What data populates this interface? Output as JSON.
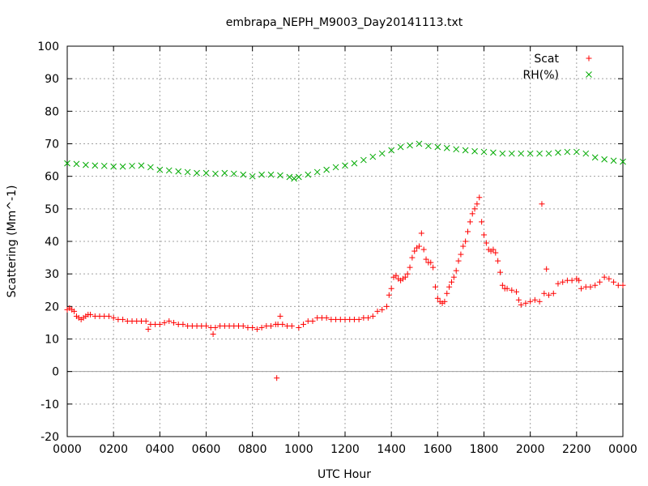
{
  "chart_data": {
    "type": "scatter",
    "title": "embrapa_NEPH_M9003_Day20141113.txt",
    "xlabel": "UTC Hour",
    "ylabel": "Scattering (Mm^-1)",
    "xlim": [
      0,
      24
    ],
    "ylim": [
      -20,
      100
    ],
    "grid": true,
    "legend_position": "top-right",
    "x_ticks": [
      {
        "x": 0,
        "label": "0000"
      },
      {
        "x": 2,
        "label": "0200"
      },
      {
        "x": 4,
        "label": "0400"
      },
      {
        "x": 6,
        "label": "0600"
      },
      {
        "x": 8,
        "label": "0800"
      },
      {
        "x": 10,
        "label": "1000"
      },
      {
        "x": 12,
        "label": "1200"
      },
      {
        "x": 14,
        "label": "1400"
      },
      {
        "x": 16,
        "label": "1600"
      },
      {
        "x": 18,
        "label": "1800"
      },
      {
        "x": 20,
        "label": "2000"
      },
      {
        "x": 22,
        "label": "2200"
      },
      {
        "x": 24,
        "label": "0000"
      }
    ],
    "y_ticks": [
      {
        "y": -20,
        "label": "-20"
      },
      {
        "y": -10,
        "label": "-10"
      },
      {
        "y": 0,
        "label": "0"
      },
      {
        "y": 10,
        "label": "10"
      },
      {
        "y": 20,
        "label": "20"
      },
      {
        "y": 30,
        "label": "30"
      },
      {
        "y": 40,
        "label": "40"
      },
      {
        "y": 50,
        "label": "50"
      },
      {
        "y": 60,
        "label": "60"
      },
      {
        "y": 70,
        "label": "70"
      },
      {
        "y": 80,
        "label": "80"
      },
      {
        "y": 90,
        "label": "90"
      },
      {
        "y": 100,
        "label": "100"
      }
    ],
    "series": [
      {
        "name": "Scat",
        "marker": "plus",
        "color": "#ff0000",
        "points": [
          [
            0.0,
            19.0
          ],
          [
            0.1,
            19.5
          ],
          [
            0.2,
            19.0
          ],
          [
            0.3,
            18.5
          ],
          [
            0.4,
            17.0
          ],
          [
            0.5,
            16.5
          ],
          [
            0.6,
            16.0
          ],
          [
            0.7,
            16.5
          ],
          [
            0.8,
            17.0
          ],
          [
            0.9,
            17.5
          ],
          [
            1.0,
            17.5
          ],
          [
            1.2,
            17.0
          ],
          [
            1.4,
            17.0
          ],
          [
            1.6,
            17.0
          ],
          [
            1.8,
            17.0
          ],
          [
            2.0,
            16.5
          ],
          [
            2.2,
            16.0
          ],
          [
            2.4,
            16.0
          ],
          [
            2.6,
            15.5
          ],
          [
            2.8,
            15.5
          ],
          [
            3.0,
            15.5
          ],
          [
            3.2,
            15.5
          ],
          [
            3.4,
            15.5
          ],
          [
            3.5,
            13.0
          ],
          [
            3.6,
            14.5
          ],
          [
            3.8,
            14.5
          ],
          [
            4.0,
            14.5
          ],
          [
            4.2,
            15.0
          ],
          [
            4.4,
            15.5
          ],
          [
            4.6,
            15.0
          ],
          [
            4.8,
            14.5
          ],
          [
            5.0,
            14.5
          ],
          [
            5.2,
            14.0
          ],
          [
            5.4,
            14.0
          ],
          [
            5.6,
            14.0
          ],
          [
            5.8,
            14.0
          ],
          [
            6.0,
            14.0
          ],
          [
            6.2,
            13.5
          ],
          [
            6.3,
            11.5
          ],
          [
            6.4,
            13.5
          ],
          [
            6.6,
            14.0
          ],
          [
            6.8,
            14.0
          ],
          [
            7.0,
            14.0
          ],
          [
            7.2,
            14.0
          ],
          [
            7.4,
            14.0
          ],
          [
            7.6,
            14.0
          ],
          [
            7.8,
            13.5
          ],
          [
            8.0,
            13.5
          ],
          [
            8.2,
            13.0
          ],
          [
            8.4,
            13.5
          ],
          [
            8.6,
            14.0
          ],
          [
            8.8,
            14.0
          ],
          [
            9.0,
            14.5
          ],
          [
            9.05,
            -2.0
          ],
          [
            9.1,
            14.5
          ],
          [
            9.2,
            17.0
          ],
          [
            9.3,
            14.5
          ],
          [
            9.5,
            14.0
          ],
          [
            9.7,
            14.0
          ],
          [
            10.0,
            13.5
          ],
          [
            10.2,
            14.5
          ],
          [
            10.4,
            15.5
          ],
          [
            10.6,
            15.5
          ],
          [
            10.8,
            16.5
          ],
          [
            11.0,
            16.5
          ],
          [
            11.2,
            16.5
          ],
          [
            11.4,
            16.0
          ],
          [
            11.6,
            16.0
          ],
          [
            11.8,
            16.0
          ],
          [
            12.0,
            16.0
          ],
          [
            12.2,
            16.0
          ],
          [
            12.4,
            16.0
          ],
          [
            12.6,
            16.0
          ],
          [
            12.8,
            16.5
          ],
          [
            13.0,
            16.5
          ],
          [
            13.2,
            17.0
          ],
          [
            13.4,
            18.5
          ],
          [
            13.6,
            19.0
          ],
          [
            13.8,
            20.0
          ],
          [
            13.9,
            23.5
          ],
          [
            14.0,
            25.5
          ],
          [
            14.1,
            29.0
          ],
          [
            14.2,
            29.5
          ],
          [
            14.3,
            28.5
          ],
          [
            14.4,
            28.0
          ],
          [
            14.5,
            28.5
          ],
          [
            14.6,
            29.0
          ],
          [
            14.7,
            30.0
          ],
          [
            14.8,
            32.0
          ],
          [
            14.9,
            35.0
          ],
          [
            15.0,
            37.0
          ],
          [
            15.1,
            38.0
          ],
          [
            15.2,
            38.5
          ],
          [
            15.3,
            42.5
          ],
          [
            15.4,
            37.5
          ],
          [
            15.5,
            34.5
          ],
          [
            15.6,
            33.5
          ],
          [
            15.7,
            33.5
          ],
          [
            15.8,
            32.0
          ],
          [
            15.9,
            26.0
          ],
          [
            16.0,
            22.5
          ],
          [
            16.1,
            21.5
          ],
          [
            16.2,
            21.0
          ],
          [
            16.3,
            21.5
          ],
          [
            16.4,
            24.0
          ],
          [
            16.5,
            26.0
          ],
          [
            16.6,
            27.5
          ],
          [
            16.7,
            29.0
          ],
          [
            16.8,
            31.0
          ],
          [
            16.9,
            34.0
          ],
          [
            17.0,
            36.0
          ],
          [
            17.1,
            38.5
          ],
          [
            17.2,
            40.0
          ],
          [
            17.3,
            43.0
          ],
          [
            17.4,
            46.0
          ],
          [
            17.5,
            48.5
          ],
          [
            17.6,
            50.0
          ],
          [
            17.7,
            51.5
          ],
          [
            17.8,
            53.5
          ],
          [
            17.9,
            46.0
          ],
          [
            18.0,
            42.0
          ],
          [
            18.1,
            39.5
          ],
          [
            18.2,
            37.5
          ],
          [
            18.3,
            37.0
          ],
          [
            18.4,
            37.5
          ],
          [
            18.5,
            36.5
          ],
          [
            18.6,
            34.0
          ],
          [
            18.7,
            30.5
          ],
          [
            18.8,
            26.5
          ],
          [
            18.9,
            25.5
          ],
          [
            19.0,
            25.5
          ],
          [
            19.2,
            25.0
          ],
          [
            19.4,
            24.5
          ],
          [
            19.5,
            22.0
          ],
          [
            19.6,
            20.5
          ],
          [
            19.8,
            21.0
          ],
          [
            20.0,
            21.5
          ],
          [
            20.2,
            22.0
          ],
          [
            20.4,
            21.5
          ],
          [
            20.5,
            51.5
          ],
          [
            20.6,
            24.0
          ],
          [
            20.7,
            31.5
          ],
          [
            20.8,
            23.5
          ],
          [
            21.0,
            24.0
          ],
          [
            21.2,
            27.0
          ],
          [
            21.4,
            27.5
          ],
          [
            21.6,
            28.0
          ],
          [
            21.8,
            28.0
          ],
          [
            22.0,
            28.5
          ],
          [
            22.1,
            28.0
          ],
          [
            22.2,
            25.5
          ],
          [
            22.4,
            26.0
          ],
          [
            22.6,
            26.0
          ],
          [
            22.8,
            26.5
          ],
          [
            23.0,
            27.5
          ],
          [
            23.2,
            29.0
          ],
          [
            23.4,
            28.5
          ],
          [
            23.6,
            27.5
          ],
          [
            23.8,
            26.5
          ],
          [
            24.0,
            26.5
          ]
        ]
      },
      {
        "name": "RH(%)",
        "marker": "cross",
        "color": "#00aa00",
        "points": [
          [
            0.0,
            64.0
          ],
          [
            0.4,
            63.8
          ],
          [
            0.8,
            63.5
          ],
          [
            1.2,
            63.3
          ],
          [
            1.6,
            63.2
          ],
          [
            2.0,
            63.0
          ],
          [
            2.4,
            63.0
          ],
          [
            2.8,
            63.2
          ],
          [
            3.2,
            63.3
          ],
          [
            3.6,
            62.8
          ],
          [
            4.0,
            62.0
          ],
          [
            4.4,
            61.8
          ],
          [
            4.8,
            61.5
          ],
          [
            5.2,
            61.3
          ],
          [
            5.6,
            61.0
          ],
          [
            6.0,
            61.0
          ],
          [
            6.4,
            60.8
          ],
          [
            6.8,
            61.0
          ],
          [
            7.2,
            60.8
          ],
          [
            7.6,
            60.5
          ],
          [
            8.0,
            60.0
          ],
          [
            8.4,
            60.5
          ],
          [
            8.8,
            60.5
          ],
          [
            9.2,
            60.3
          ],
          [
            9.6,
            59.8
          ],
          [
            9.8,
            59.3
          ],
          [
            10.0,
            59.8
          ],
          [
            10.4,
            60.5
          ],
          [
            10.8,
            61.3
          ],
          [
            11.2,
            62.0
          ],
          [
            11.6,
            62.8
          ],
          [
            12.0,
            63.3
          ],
          [
            12.4,
            64.0
          ],
          [
            12.8,
            65.0
          ],
          [
            13.2,
            66.0
          ],
          [
            13.6,
            67.0
          ],
          [
            14.0,
            68.0
          ],
          [
            14.4,
            69.0
          ],
          [
            14.8,
            69.5
          ],
          [
            15.2,
            70.0
          ],
          [
            15.6,
            69.3
          ],
          [
            16.0,
            69.0
          ],
          [
            16.4,
            68.7
          ],
          [
            16.8,
            68.3
          ],
          [
            17.2,
            68.0
          ],
          [
            17.6,
            67.7
          ],
          [
            18.0,
            67.5
          ],
          [
            18.4,
            67.3
          ],
          [
            18.8,
            67.0
          ],
          [
            19.2,
            67.0
          ],
          [
            19.6,
            67.0
          ],
          [
            20.0,
            67.0
          ],
          [
            20.4,
            67.0
          ],
          [
            20.8,
            67.0
          ],
          [
            21.2,
            67.3
          ],
          [
            21.6,
            67.5
          ],
          [
            22.0,
            67.5
          ],
          [
            22.4,
            67.0
          ],
          [
            22.8,
            65.8
          ],
          [
            23.2,
            65.2
          ],
          [
            23.6,
            64.8
          ],
          [
            24.0,
            64.5
          ]
        ]
      }
    ]
  }
}
